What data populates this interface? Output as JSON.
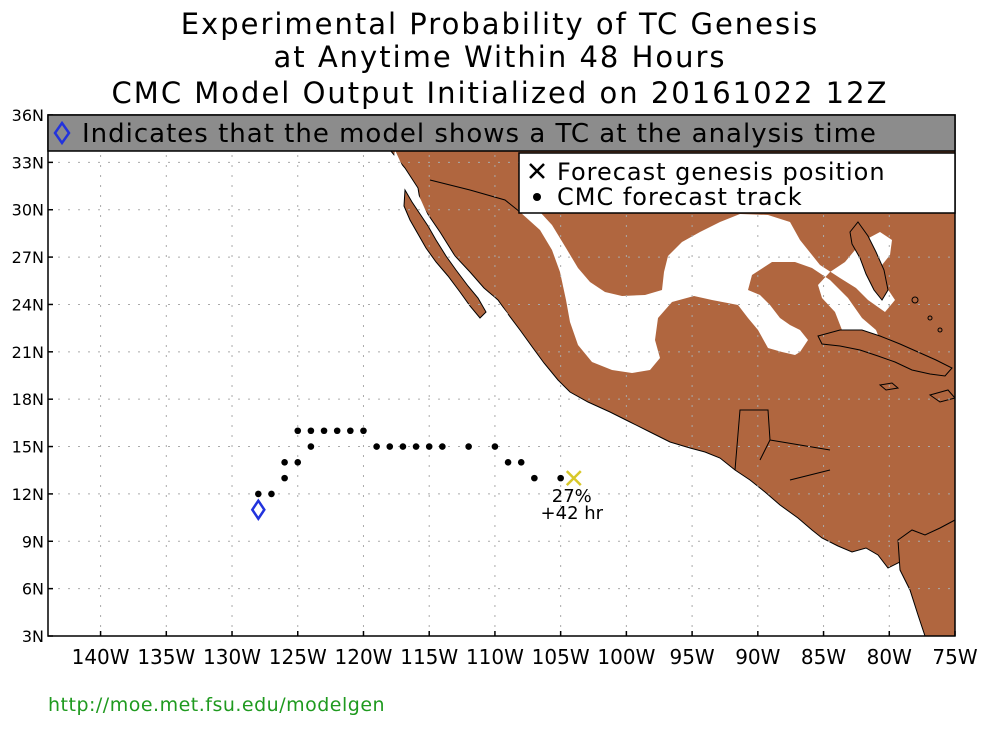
{
  "title": {
    "line1": "Experimental Probability of TC Genesis",
    "line2": "at Anytime Within 48 Hours",
    "line3": "CMC Model Output Initialized on 20161022 12Z"
  },
  "banner": {
    "text": "Indicates that the model shows a TC at the analysis time",
    "icon": "diamond-icon"
  },
  "legend": {
    "genesis_label": "Forecast genesis position",
    "track_label": "CMC forecast track",
    "genesis_icon": "x-mark-icon",
    "track_icon": "dot-icon",
    "position": "top-right"
  },
  "axes": {
    "lat_labels": [
      "36N",
      "33N",
      "30N",
      "27N",
      "24N",
      "21N",
      "18N",
      "15N",
      "12N",
      "9N",
      "6N",
      "3N"
    ],
    "lon_labels": [
      "140W",
      "135W",
      "130W",
      "125W",
      "120W",
      "115W",
      "110W",
      "105W",
      "100W",
      "95W",
      "90W",
      "85W",
      "80W",
      "75W"
    ],
    "lat_range": [
      3,
      36
    ],
    "lon_range": [
      -144,
      -75
    ]
  },
  "track": {
    "analysis_position": {
      "lon": -128,
      "lat": 11
    },
    "points": [
      {
        "lon": -128,
        "lat": 12
      },
      {
        "lon": -127,
        "lat": 12
      },
      {
        "lon": -126,
        "lat": 13
      },
      {
        "lon": -126,
        "lat": 14
      },
      {
        "lon": -125,
        "lat": 14
      },
      {
        "lon": -125,
        "lat": 16
      },
      {
        "lon": -124,
        "lat": 16
      },
      {
        "lon": -124,
        "lat": 15
      },
      {
        "lon": -123,
        "lat": 16
      },
      {
        "lon": -122,
        "lat": 16
      },
      {
        "lon": -121,
        "lat": 16
      },
      {
        "lon": -120,
        "lat": 16
      },
      {
        "lon": -119,
        "lat": 15
      },
      {
        "lon": -118,
        "lat": 15
      },
      {
        "lon": -117,
        "lat": 15
      },
      {
        "lon": -116,
        "lat": 15
      },
      {
        "lon": -115,
        "lat": 15
      },
      {
        "lon": -114,
        "lat": 15
      },
      {
        "lon": -112,
        "lat": 15
      },
      {
        "lon": -110,
        "lat": 15
      },
      {
        "lon": -109,
        "lat": 14
      },
      {
        "lon": -108,
        "lat": 14
      },
      {
        "lon": -107,
        "lat": 13
      },
      {
        "lon": -105,
        "lat": 13
      }
    ],
    "genesis": {
      "lon": -104,
      "lat": 13,
      "probability": "27%",
      "lead_time": "+42 hr"
    }
  },
  "colors": {
    "land": "#b0663f",
    "banner_bg": "#8c8c8c",
    "diamond": "#2233dd",
    "genesis_x": "#d8c829",
    "url": "#1f9a1f",
    "grid": "#aaaaaa"
  },
  "footer": {
    "url": "http://moe.met.fsu.edu/modelgen"
  }
}
